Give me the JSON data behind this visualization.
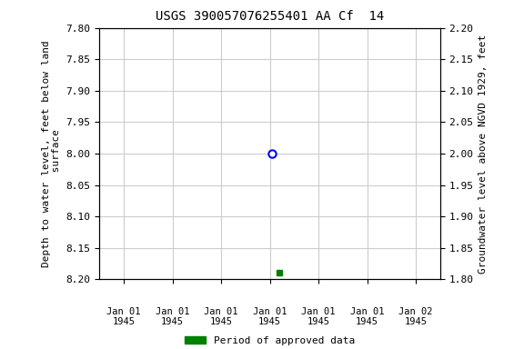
{
  "title": "USGS 390057076255401 AA Cf  14",
  "ylabel_left": "Depth to water level, feet below land\n surface",
  "ylabel_right": "Groundwater level above NGVD 1929, feet",
  "ylim_left": [
    8.2,
    7.8
  ],
  "ylim_right": [
    1.8,
    2.2
  ],
  "yticks_left": [
    7.8,
    7.85,
    7.9,
    7.95,
    8.0,
    8.05,
    8.1,
    8.15,
    8.2
  ],
  "yticks_right": [
    1.8,
    1.85,
    1.9,
    1.95,
    2.0,
    2.05,
    2.1,
    2.15,
    2.2
  ],
  "x_ticks": [
    0,
    1,
    2,
    3,
    4,
    5,
    6
  ],
  "x_tick_labels_line1": [
    "Jan 01",
    "Jan 01",
    "Jan 01",
    "Jan 01",
    "Jan 01",
    "Jan 01",
    "Jan 02"
  ],
  "x_tick_labels_line2": [
    "1945",
    "1945",
    "1945",
    "1945",
    "1945",
    "1945",
    "1945"
  ],
  "data_x_open": 3.05,
  "data_y_open": 8.0,
  "data_x_filled": 3.2,
  "data_y_filled": 8.19,
  "open_color": "blue",
  "filled_color": "green",
  "grid_color": "#cccccc",
  "background_color": "#ffffff",
  "legend_label": "Period of approved data",
  "legend_color": "green"
}
